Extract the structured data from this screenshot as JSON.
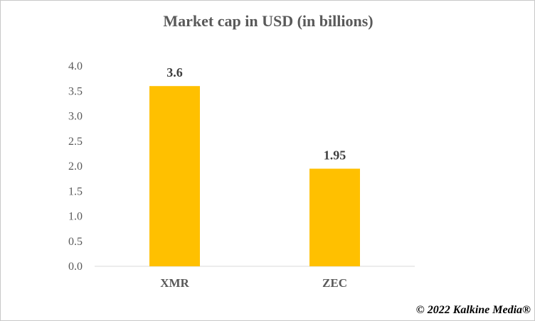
{
  "chart_data": {
    "type": "bar",
    "title": "Market cap in USD (in billions)",
    "categories": [
      "XMR",
      "ZEC"
    ],
    "values": [
      3.6,
      1.95
    ],
    "data_labels": [
      "3.6",
      "1.95"
    ],
    "ylim": [
      0,
      4.0
    ],
    "yticks": [
      "0.0",
      "0.5",
      "1.0",
      "1.5",
      "2.0",
      "2.5",
      "3.0",
      "3.5",
      "4.0"
    ],
    "xlabel": "",
    "ylabel": "",
    "grid": false,
    "legend": "none",
    "bar_color": "#FFC000"
  },
  "credit": "© 2022 Kalkine Media®"
}
